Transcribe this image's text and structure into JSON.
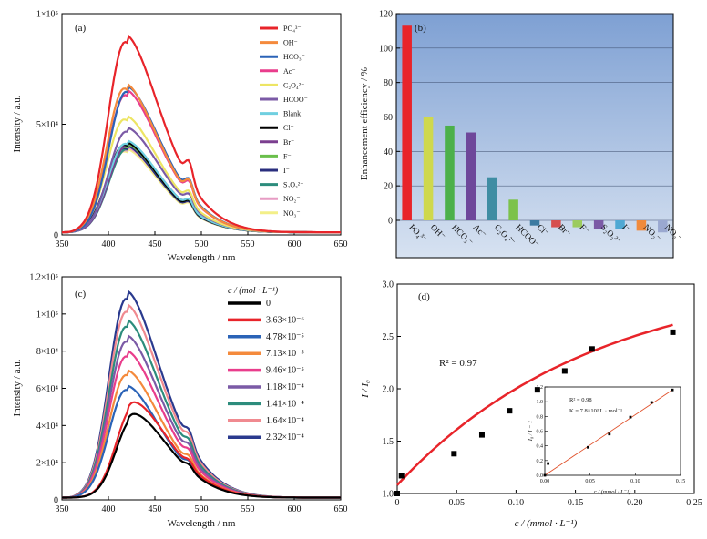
{
  "chart_data": [
    {
      "panel": "(a)",
      "type": "line",
      "xlabel": "Wavelength / nm",
      "ylabel": "Intensity / a.u.",
      "xlim": [
        350,
        650
      ],
      "ylim": [
        0,
        100000
      ],
      "xticks": [
        "350",
        "400",
        "450",
        "500",
        "550",
        "600",
        "650"
      ],
      "yticks": [
        "0",
        "5×10⁴",
        "1×10⁵"
      ],
      "legend_position": "right",
      "series": [
        {
          "name": "PO4 3−",
          "label": "PO₄³⁻",
          "color": "#e8242a",
          "peak": 86000
        },
        {
          "name": "OH−",
          "label": "OH⁻",
          "color": "#f48a3c",
          "peak": 65000
        },
        {
          "name": "HCO3−",
          "label": "HCO₃⁻",
          "color": "#2b63b7",
          "peak": 63500
        },
        {
          "name": "Ac−",
          "label": "Ac⁻",
          "color": "#e93d8c",
          "peak": 62000
        },
        {
          "name": "C2O4 2−",
          "label": "C₂O₄²⁻",
          "color": "#ede564",
          "peak": 51000
        },
        {
          "name": "HCOO−",
          "label": "HCOO⁻",
          "color": "#7b5aa6",
          "peak": 45500
        },
        {
          "name": "Blank",
          "label": "Blank",
          "color": "#6fcfe0",
          "peak": 40000
        },
        {
          "name": "Cl−",
          "label": "Cl⁻",
          "color": "#000000",
          "peak": 39500
        },
        {
          "name": "Br−",
          "label": "Br⁻",
          "color": "#7b3f8f",
          "peak": 39000
        },
        {
          "name": "F−",
          "label": "F⁻",
          "color": "#6abf4b",
          "peak": 38500
        },
        {
          "name": "I−",
          "label": "I⁻",
          "color": "#2a2e7e",
          "peak": 38000
        },
        {
          "name": "S2O3 2−",
          "label": "S₂O₃²⁻",
          "color": "#2c8c7c",
          "peak": 37500
        },
        {
          "name": "NO2−",
          "label": "NO₂⁻",
          "color": "#e79cc4",
          "peak": 37000
        },
        {
          "name": "NO3−",
          "label": "NO₃⁻",
          "color": "#f3ef88",
          "peak": 36500
        }
      ]
    },
    {
      "panel": "(b)",
      "type": "bar",
      "ylabel": "Enhancement efficiency / %",
      "ylim": [
        -10,
        120
      ],
      "yticks": [
        "0",
        "20",
        "40",
        "60",
        "80",
        "100",
        "120"
      ],
      "grid": true,
      "categories": [
        "PO₄³⁻",
        "OH⁻",
        "HCO₃⁻",
        "Ac⁻",
        "C₂O₄²⁻",
        "HCOO⁻",
        "Cl⁻",
        "Br⁻",
        "F⁻",
        "S₂O₃²⁻",
        "I⁻",
        "NO₂⁻",
        "NO₃⁻"
      ],
      "values": [
        113,
        60,
        55,
        51,
        25,
        12,
        -3,
        -4,
        -4,
        -5,
        -5,
        -6,
        -7
      ],
      "colors": [
        "#e8242a",
        "#cfd84d",
        "#4cb04a",
        "#6e479a",
        "#3f8da3",
        "#7cc24b",
        "#3b7aa1",
        "#d64f4f",
        "#9ccb5e",
        "#7b5aa6",
        "#4fa8d3",
        "#f08a3c",
        "#9aa8d0"
      ]
    },
    {
      "panel": "(c)",
      "type": "line",
      "xlabel": "Wavelength / nm",
      "ylabel": "Intensity / a.u.",
      "xlim": [
        350,
        650
      ],
      "ylim": [
        0,
        120000
      ],
      "xticks": [
        "350",
        "400",
        "450",
        "500",
        "550",
        "600",
        "650"
      ],
      "yticks": [
        "0",
        "2×10⁴",
        "4×10⁴",
        "6×10⁴",
        "8×10⁴",
        "1×10⁵",
        "1.2×10⁵"
      ],
      "legend_title": "c / (mol · L⁻¹)",
      "legend_position": "right",
      "series": [
        {
          "name": "0",
          "label": "0",
          "color": "#000000",
          "peak": 43000
        },
        {
          "name": "3.63×10−6",
          "label": "3.63×10⁻⁶",
          "color": "#e8242a",
          "peak": 49000
        },
        {
          "name": "4.78×10−5",
          "label": "4.78×10⁻⁵",
          "color": "#2b63b7",
          "peak": 58000
        },
        {
          "name": "7.13×10−5",
          "label": "7.13×10⁻⁵",
          "color": "#f48a3c",
          "peak": 66000
        },
        {
          "name": "9.46×10−5",
          "label": "9.46×10⁻⁵",
          "color": "#e93d8c",
          "peak": 76000
        },
        {
          "name": "1.18×10−4",
          "label": "1.18×10⁻⁴",
          "color": "#7b5aa6",
          "peak": 84000
        },
        {
          "name": "1.41×10−4",
          "label": "1.41×10⁻⁴",
          "color": "#2c8c7c",
          "peak": 92000
        },
        {
          "name": "1.64×10−4",
          "label": "1.64×10⁻⁴",
          "color": "#f08a90",
          "peak": 100000
        },
        {
          "name": "2.32×10−4",
          "label": "2.32×10⁻⁴",
          "color": "#2a3a8e",
          "peak": 107000
        }
      ]
    },
    {
      "panel": "(d)",
      "type": "scatter",
      "xlabel": "c / (mmol · L⁻¹)",
      "ylabel": "I / I₀",
      "xlim": [
        0,
        0.25
      ],
      "ylim": [
        1.0,
        3.0
      ],
      "xticks": [
        "0",
        "0.05",
        "0.10",
        "0.15",
        "0.20",
        "0.25"
      ],
      "yticks": [
        "1.0",
        "1.5",
        "2.0",
        "2.5",
        "3.0"
      ],
      "annotation": "R² = 0.97",
      "points": [
        [
          0.0,
          1.0
        ],
        [
          0.00363,
          1.17
        ],
        [
          0.0478,
          1.38
        ],
        [
          0.0713,
          1.56
        ],
        [
          0.0946,
          1.79
        ],
        [
          0.118,
          1.99
        ],
        [
          0.141,
          2.17
        ],
        [
          0.164,
          2.38
        ],
        [
          0.232,
          2.54
        ]
      ],
      "fit_color": "#e8242a",
      "inset": {
        "xlabel": "c / (mmol · L⁻¹)",
        "ylabel": "I₀ / I − 1",
        "xlim": [
          0,
          0.15
        ],
        "ylim": [
          0,
          1.2
        ],
        "xticks": [
          "0.00",
          "0.05",
          "0.10",
          "0.15"
        ],
        "yticks": [
          "0.0",
          "0.2",
          "0.4",
          "0.6",
          "0.8",
          "1.0",
          "1.2"
        ],
        "annotation_r2": "R² = 0.98",
        "annotation_k": "K = 7.8×10³ L · mol⁻¹",
        "points": [
          [
            0.0,
            0.0
          ],
          [
            0.00363,
            0.16
          ],
          [
            0.0478,
            0.38
          ],
          [
            0.0713,
            0.56
          ],
          [
            0.0946,
            0.79
          ],
          [
            0.118,
            0.99
          ],
          [
            0.141,
            1.16
          ]
        ],
        "fit": [
          [
            0.0,
            0.0
          ],
          [
            0.141,
            1.16
          ]
        ]
      }
    }
  ]
}
